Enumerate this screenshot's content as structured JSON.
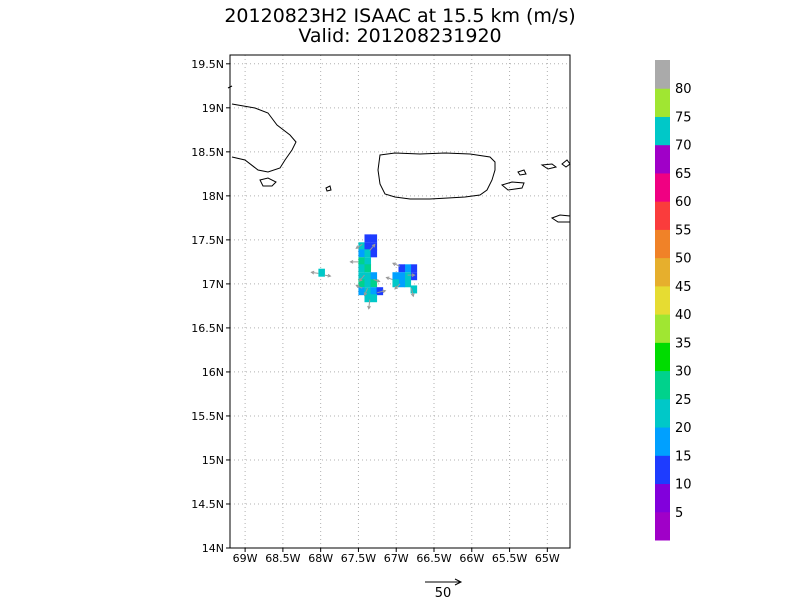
{
  "title": {
    "line1": "20120823H2 ISAAC at 15.5 km (m/s)",
    "line2": "Valid: 201208231920"
  },
  "chart_data": {
    "type": "heatmap",
    "xlim": [
      -69.2,
      -64.7
    ],
    "ylim": [
      14.0,
      19.6
    ],
    "x_ticks": [
      {
        "value": -69.0,
        "label": "69W"
      },
      {
        "value": -68.5,
        "label": "68.5W"
      },
      {
        "value": -68.0,
        "label": "68W"
      },
      {
        "value": -67.5,
        "label": "67.5W"
      },
      {
        "value": -67.0,
        "label": "67W"
      },
      {
        "value": -66.5,
        "label": "66.5W"
      },
      {
        "value": -66.0,
        "label": "66W"
      },
      {
        "value": -65.5,
        "label": "65.5W"
      },
      {
        "value": -65.0,
        "label": "65W"
      }
    ],
    "y_ticks": [
      {
        "value": 14.0,
        "label": "14N"
      },
      {
        "value": 14.5,
        "label": "14.5N"
      },
      {
        "value": 15.0,
        "label": "15N"
      },
      {
        "value": 15.5,
        "label": "15.5N"
      },
      {
        "value": 16.0,
        "label": "16N"
      },
      {
        "value": 16.5,
        "label": "16.5N"
      },
      {
        "value": 17.0,
        "label": "17N"
      },
      {
        "value": 17.5,
        "label": "17.5N"
      },
      {
        "value": 18.0,
        "label": "18N"
      },
      {
        "value": 18.5,
        "label": "18.5N"
      },
      {
        "value": 19.0,
        "label": "19N"
      },
      {
        "value": 19.5,
        "label": "19.5N"
      }
    ],
    "grid": true,
    "colorbar": {
      "labels": [
        "5",
        "10",
        "15",
        "20",
        "25",
        "30",
        "35",
        "40",
        "45",
        "50",
        "55",
        "60",
        "65",
        "70",
        "75",
        "80"
      ],
      "colors": [
        "#a000c8",
        "#8200dc",
        "#1e3cff",
        "#00a0ff",
        "#00c8c8",
        "#00d28c",
        "#00dc00",
        "#a0e632",
        "#e6dc32",
        "#e6af2d",
        "#f08228",
        "#fa3c3c",
        "#f00082",
        "#a000c8",
        "#00c8c8",
        "#a0e632",
        "#aaaaaa"
      ]
    },
    "cells": [
      {
        "lon": -67.38,
        "lat": 17.52,
        "v": 10
      },
      {
        "lon": -67.3,
        "lat": 17.52,
        "v": 10
      },
      {
        "lon": -67.46,
        "lat": 17.43,
        "v": 20
      },
      {
        "lon": -67.38,
        "lat": 17.43,
        "v": 10
      },
      {
        "lon": -67.3,
        "lat": 17.43,
        "v": 10
      },
      {
        "lon": -67.46,
        "lat": 17.35,
        "v": 15
      },
      {
        "lon": -67.38,
        "lat": 17.35,
        "v": 20
      },
      {
        "lon": -67.3,
        "lat": 17.35,
        "v": 10
      },
      {
        "lon": -67.46,
        "lat": 17.26,
        "v": 25
      },
      {
        "lon": -67.38,
        "lat": 17.26,
        "v": 20
      },
      {
        "lon": -67.46,
        "lat": 17.18,
        "v": 20
      },
      {
        "lon": -67.38,
        "lat": 17.18,
        "v": 25
      },
      {
        "lon": -67.46,
        "lat": 17.09,
        "v": 20
      },
      {
        "lon": -67.38,
        "lat": 17.09,
        "v": 20
      },
      {
        "lon": -67.3,
        "lat": 17.09,
        "v": 15
      },
      {
        "lon": -67.46,
        "lat": 17.01,
        "v": 25
      },
      {
        "lon": -67.38,
        "lat": 17.01,
        "v": 20
      },
      {
        "lon": -67.3,
        "lat": 17.01,
        "v": 25
      },
      {
        "lon": -67.46,
        "lat": 16.92,
        "v": 15
      },
      {
        "lon": -67.38,
        "lat": 16.92,
        "v": 20
      },
      {
        "lon": -67.3,
        "lat": 16.92,
        "v": 15
      },
      {
        "lon": -67.22,
        "lat": 16.92,
        "v": 10
      },
      {
        "lon": -67.38,
        "lat": 16.84,
        "v": 20
      },
      {
        "lon": -67.3,
        "lat": 16.84,
        "v": 20
      },
      {
        "lon": -66.77,
        "lat": 17.18,
        "v": 10
      },
      {
        "lon": -66.85,
        "lat": 17.18,
        "v": 15
      },
      {
        "lon": -66.93,
        "lat": 17.18,
        "v": 10
      },
      {
        "lon": -66.77,
        "lat": 17.09,
        "v": 10
      },
      {
        "lon": -66.85,
        "lat": 17.09,
        "v": 20
      },
      {
        "lon": -66.93,
        "lat": 17.09,
        "v": 15
      },
      {
        "lon": -67.01,
        "lat": 17.09,
        "v": 15
      },
      {
        "lon": -66.85,
        "lat": 17.01,
        "v": 20
      },
      {
        "lon": -66.93,
        "lat": 17.01,
        "v": 15
      },
      {
        "lon": -67.01,
        "lat": 17.01,
        "v": 20
      },
      {
        "lon": -66.77,
        "lat": 16.94,
        "v": 20
      },
      {
        "lon": -67.99,
        "lat": 17.13,
        "v": 20
      }
    ],
    "vectors": [
      {
        "lon": -67.45,
        "lat": 17.45,
        "u": -6,
        "v": -4
      },
      {
        "lon": -67.35,
        "lat": 17.38,
        "u": 5,
        "v": 6
      },
      {
        "lon": -67.5,
        "lat": 17.25,
        "u": -8,
        "v": 0
      },
      {
        "lon": -67.42,
        "lat": 17.1,
        "u": -5,
        "v": -6
      },
      {
        "lon": -67.3,
        "lat": 17.05,
        "u": 6,
        "v": -2
      },
      {
        "lon": -67.38,
        "lat": 16.95,
        "u": -3,
        "v": -7
      },
      {
        "lon": -67.25,
        "lat": 16.9,
        "u": 8,
        "v": 2
      },
      {
        "lon": -67.35,
        "lat": 16.82,
        "u": -1,
        "v": -9
      },
      {
        "lon": -67.45,
        "lat": 16.95,
        "u": -6,
        "v": 3
      },
      {
        "lon": -66.95,
        "lat": 17.2,
        "u": -7,
        "v": 3
      },
      {
        "lon": -66.85,
        "lat": 17.1,
        "u": 7,
        "v": 0
      },
      {
        "lon": -66.95,
        "lat": 17.0,
        "u": -5,
        "v": -5
      },
      {
        "lon": -66.8,
        "lat": 16.95,
        "u": 2,
        "v": -8
      },
      {
        "lon": -67.05,
        "lat": 17.05,
        "u": -6,
        "v": 2
      },
      {
        "lon": -68.03,
        "lat": 17.12,
        "u": -7,
        "v": 1
      },
      {
        "lon": -67.95,
        "lat": 17.1,
        "u": 6,
        "v": -1
      }
    ],
    "reference_vector": {
      "label": "50"
    }
  }
}
